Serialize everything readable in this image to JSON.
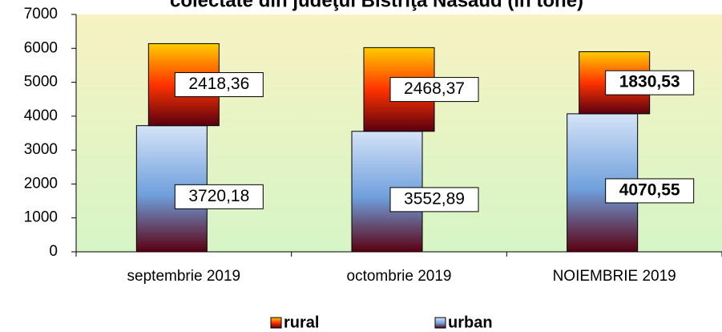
{
  "chart_data": {
    "type": "bar",
    "stacked": true,
    "title": "colectate din judeţul Bistriţa Năsăud (în tone)",
    "categories": [
      "septembrie 2019",
      "octombrie 2019",
      "NOIEMBRIE 2019"
    ],
    "series": [
      {
        "name": "urban",
        "color": "#6f9fdc",
        "values": [
          3720.18,
          3552.89,
          4070.55
        ],
        "value_labels": [
          "3720,18",
          "3552,89",
          "4070,55"
        ]
      },
      {
        "name": "rural",
        "color": "#ff3300",
        "values": [
          2418.36,
          2468.37,
          1830.53
        ],
        "value_labels": [
          "2418,36",
          "2468,37",
          "1830,53"
        ]
      }
    ],
    "ylim": [
      0,
      7000
    ],
    "yticks": [
      0,
      1000,
      2000,
      3000,
      4000,
      5000,
      6000,
      7000
    ],
    "legend": "bottom"
  }
}
